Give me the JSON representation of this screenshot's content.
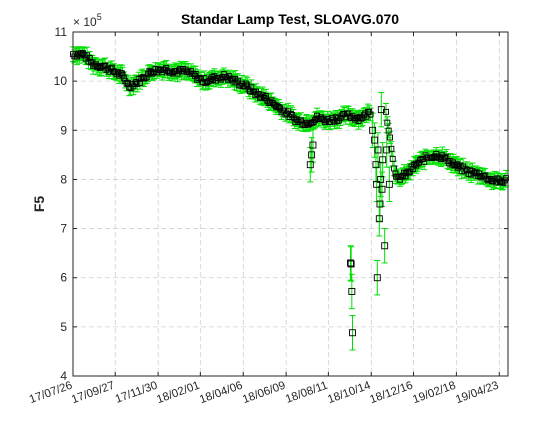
{
  "chart_data": {
    "type": "scatter",
    "title": "Standar Lamp Test, SLOAVG.070",
    "xlabel": "",
    "ylabel": "F5",
    "y_exponent_label": "× 10",
    "y_exponent_power": "5",
    "ylim": [
      4,
      11
    ],
    "y_ticks": [
      4,
      5,
      6,
      7,
      8,
      9,
      10,
      11
    ],
    "xlim": [
      "2017-07-26",
      "2019-05-06"
    ],
    "x_ticks": [
      {
        "date": "2017-07-26",
        "label": "17/07/26"
      },
      {
        "date": "2017-09-27",
        "label": "17/09/27"
      },
      {
        "date": "2017-11-30",
        "label": "17/11/30"
      },
      {
        "date": "2018-02-01",
        "label": "18/02/01"
      },
      {
        "date": "2018-04-06",
        "label": "18/04/06"
      },
      {
        "date": "2018-06-09",
        "label": "18/06/09"
      },
      {
        "date": "2018-08-11",
        "label": "18/08/11"
      },
      {
        "date": "2018-10-14",
        "label": "18/10/14"
      },
      {
        "date": "2018-12-16",
        "label": "18/12/16"
      },
      {
        "date": "2019-02-18",
        "label": "19/02/18"
      },
      {
        "date": "2019-04-23",
        "label": "19/04/23"
      }
    ],
    "grid": true,
    "legend": "none",
    "colors": {
      "marker": "#000000",
      "errorbar": "#00e000",
      "axis": "#262626",
      "grid": "#d0d0d0"
    },
    "trend": [
      [
        "2017-07-26",
        10.55
      ],
      [
        "2017-08-10",
        10.55
      ],
      [
        "2017-08-25",
        10.35
      ],
      [
        "2017-09-10",
        10.3
      ],
      [
        "2017-09-25",
        10.2
      ],
      [
        "2017-10-08",
        10.1
      ],
      [
        "2017-10-18",
        9.9
      ],
      [
        "2017-11-01",
        10.0
      ],
      [
        "2017-11-20",
        10.2
      ],
      [
        "2017-12-10",
        10.25
      ],
      [
        "2017-12-25",
        10.2
      ],
      [
        "2018-01-10",
        10.2
      ],
      [
        "2018-01-25",
        10.1
      ],
      [
        "2018-02-05",
        10.0
      ],
      [
        "2018-02-20",
        10.05
      ],
      [
        "2018-03-10",
        10.1
      ],
      [
        "2018-03-25",
        10.0
      ],
      [
        "2018-04-10",
        9.9
      ],
      [
        "2018-04-25",
        9.75
      ],
      [
        "2018-05-10",
        9.65
      ],
      [
        "2018-05-25",
        9.5
      ],
      [
        "2018-06-10",
        9.35
      ],
      [
        "2018-06-25",
        9.2
      ],
      [
        "2018-07-10",
        9.15
      ],
      [
        "2018-07-25",
        9.25
      ],
      [
        "2018-08-10",
        9.2
      ],
      [
        "2018-08-25",
        9.25
      ],
      [
        "2018-09-10",
        9.3
      ],
      [
        "2018-09-25",
        9.25
      ],
      [
        "2018-10-05",
        9.3
      ],
      [
        "2018-10-15",
        9.4
      ],
      [
        "2018-11-05",
        9.4
      ],
      [
        "2018-11-20",
        8.0
      ],
      [
        "2018-12-05",
        8.1
      ],
      [
        "2018-12-20",
        8.3
      ],
      [
        "2019-01-05",
        8.45
      ],
      [
        "2019-01-20",
        8.5
      ],
      [
        "2019-02-05",
        8.4
      ],
      [
        "2019-02-20",
        8.25
      ],
      [
        "2019-03-10",
        8.15
      ],
      [
        "2019-03-25",
        8.1
      ],
      [
        "2019-04-10",
        8.0
      ],
      [
        "2019-04-25",
        7.95
      ],
      [
        "2019-05-05",
        8.0
      ]
    ],
    "outliers": [
      [
        "2018-07-15",
        8.3
      ],
      [
        "2018-07-17",
        8.5
      ],
      [
        "2018-07-19",
        8.7
      ],
      [
        "2018-09-13",
        6.3
      ],
      [
        "2018-09-14",
        6.28
      ],
      [
        "2018-09-15",
        5.72
      ],
      [
        "2018-09-16",
        4.88
      ],
      [
        "2018-10-16",
        9.0
      ],
      [
        "2018-10-19",
        8.8
      ],
      [
        "2018-10-21",
        8.3
      ],
      [
        "2018-10-22",
        7.9
      ],
      [
        "2018-10-23",
        6.0
      ],
      [
        "2018-10-24",
        8.6
      ],
      [
        "2018-10-26",
        7.2
      ],
      [
        "2018-10-27",
        7.5
      ],
      [
        "2018-10-28",
        8.0
      ],
      [
        "2018-10-29",
        9.42
      ],
      [
        "2018-10-30",
        7.8
      ],
      [
        "2018-10-31",
        8.4
      ],
      [
        "2018-11-03",
        6.65
      ],
      [
        "2018-11-06",
        8.6
      ],
      [
        "2018-11-10",
        7.9
      ]
    ]
  }
}
